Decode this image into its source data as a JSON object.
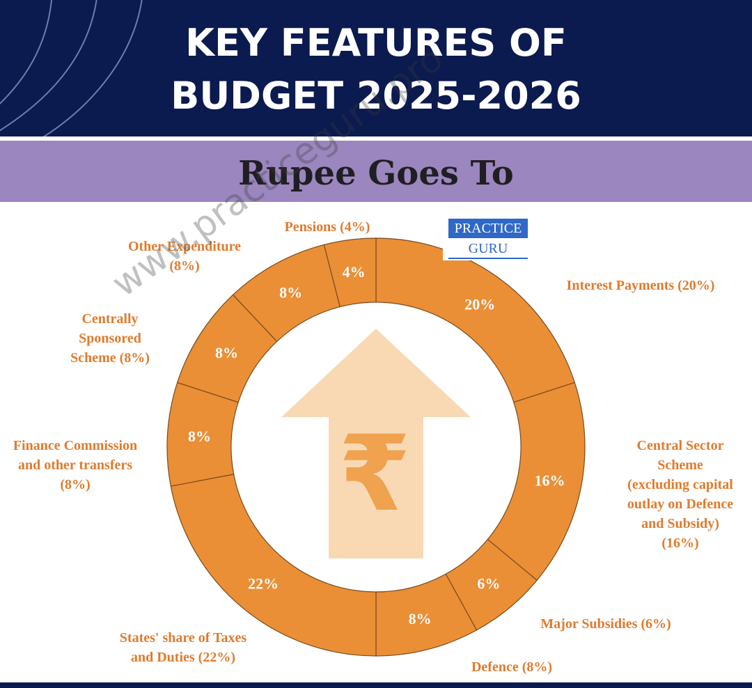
{
  "header": {
    "title_line1": "KEY FEATURES OF",
    "title_line2": "BUDGET 2025-2026"
  },
  "band": {
    "title": "Rupee Goes To"
  },
  "logo": {
    "top": "PRACTICE",
    "bottom": "GURU"
  },
  "watermark": "www.practiceguru.pro",
  "center_symbol": "₹",
  "colors": {
    "header_bg": "#0b1a4f",
    "band_bg": "#9b86bf",
    "ring": "#ea8f35",
    "label": "#e07b2d",
    "arrow": "#f8d9b4",
    "rupee": "#f0a24f"
  },
  "chart_data": {
    "type": "pie",
    "title": "Rupee Goes To",
    "unit": "%",
    "slices": [
      {
        "label": "Interest Payments",
        "value": 20,
        "display": "20%",
        "caption": [
          "Interest Payments (20%)"
        ]
      },
      {
        "label": "Central Sector Scheme (excluding capital outlay on Defence and Subsidy)",
        "value": 16,
        "display": "16%",
        "caption": [
          "Central Sector",
          "Scheme",
          "(excluding capital",
          "outlay on Defence",
          "and Subsidy)",
          "(16%)"
        ]
      },
      {
        "label": "Major Subsidies",
        "value": 6,
        "display": "6%",
        "caption": [
          "Major Subsidies (6%)"
        ]
      },
      {
        "label": "Defence",
        "value": 8,
        "display": "8%",
        "caption": [
          "Defence (8%)"
        ]
      },
      {
        "label": "States' share of Taxes and Duties",
        "value": 22,
        "display": "22%",
        "caption": [
          "States' share of Taxes",
          "and Duties (22%)"
        ]
      },
      {
        "label": "Finance Commission and other transfers",
        "value": 8,
        "display": "8%",
        "caption": [
          "Finance Commission",
          "and other transfers",
          "(8%)"
        ]
      },
      {
        "label": "Centrally Sponsored Scheme",
        "value": 8,
        "display": "8%",
        "caption": [
          "Centrally",
          "Sponsored",
          "Scheme (8%)"
        ]
      },
      {
        "label": "Other Expenditure",
        "value": 8,
        "display": "8%",
        "caption": [
          "Other Expenditure",
          "(8%)"
        ]
      },
      {
        "label": "Pensions",
        "value": 4,
        "display": "4%",
        "caption": [
          "Pensions (4%)"
        ]
      }
    ]
  }
}
